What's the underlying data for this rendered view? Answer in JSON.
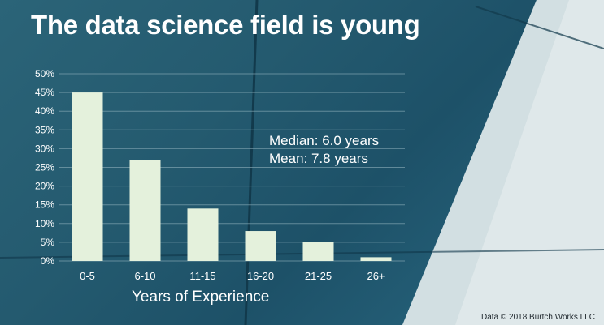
{
  "slide": {
    "title": "The data science field is young",
    "stats": {
      "median": "Median: 6.0 years",
      "mean": "Mean: 7.8 years"
    },
    "source": "Data © 2018 Burtch Works LLC"
  },
  "colors": {
    "background": "#245a6f",
    "bars": "#e4f1dc",
    "text": "#ffffff",
    "gridlines": "#7fa3b0"
  },
  "chart_data": {
    "type": "bar",
    "title": "",
    "xlabel": "Years of Experience",
    "ylabel": "",
    "categories": [
      "0-5",
      "6-10",
      "11-15",
      "16-20",
      "21-25",
      "26+"
    ],
    "values": [
      45,
      27,
      14,
      8,
      5,
      1
    ],
    "ylim": [
      0,
      50
    ],
    "yticks": [
      "0%",
      "5%",
      "10%",
      "15%",
      "20%",
      "25%",
      "30%",
      "35%",
      "40%",
      "45%",
      "50%"
    ],
    "grid": true,
    "legend": "none"
  }
}
